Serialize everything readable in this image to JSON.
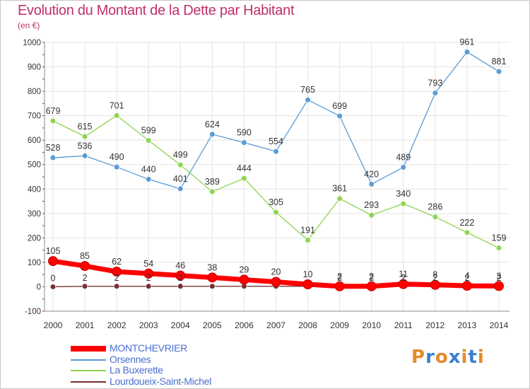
{
  "page": {
    "title": "Evolution du Montant de la Dette par Habitant",
    "subtitle": "(en €)"
  },
  "chart_data": {
    "type": "line",
    "title": "Evolution du Montant de la Dette par Habitant",
    "subtitle": "(en €)",
    "x": [
      2000,
      2001,
      2002,
      2003,
      2004,
      2005,
      2006,
      2007,
      2008,
      2009,
      2010,
      2011,
      2012,
      2013,
      2014
    ],
    "ylim": [
      -100,
      1000
    ],
    "yticks": [
      -100,
      0,
      100,
      200,
      300,
      400,
      500,
      600,
      700,
      800,
      900,
      1000
    ],
    "grid": true,
    "legend_position": "bottom-left",
    "series": [
      {
        "name": "MONTCHEVRIER",
        "color": "#ff0000",
        "values": [
          105,
          85,
          62,
          54,
          46,
          38,
          29,
          20,
          10,
          2,
          2,
          11,
          8,
          4,
          3
        ],
        "labels": [
          "105",
          "85",
          "62",
          "54",
          "46",
          "38",
          "29",
          "20",
          "10",
          "2",
          "2",
          "11",
          "8",
          "4",
          "3"
        ]
      },
      {
        "name": "Orsennes",
        "color": "#5b9bd5",
        "values": [
          528,
          536,
          490,
          440,
          401,
          624,
          590,
          554,
          765,
          699,
          420,
          489,
          793,
          961,
          881
        ],
        "labels": [
          "528",
          "536",
          "490",
          "440",
          "401",
          "624",
          "590",
          "554",
          "765",
          "699",
          "420",
          "489",
          "793",
          "961",
          "881"
        ]
      },
      {
        "name": "La Buxerette",
        "color": "#8fd450",
        "values": [
          679,
          615,
          701,
          599,
          499,
          389,
          444,
          305,
          191,
          361,
          293,
          340,
          286,
          222,
          159
        ],
        "labels": [
          "679",
          "615",
          "701",
          "599",
          "499",
          "389",
          "444",
          "305",
          "191",
          "361",
          "293",
          "340",
          "286",
          "222",
          "159"
        ]
      },
      {
        "name": "Lourdoueix-Saint-Michel",
        "color": "#7a2e2e",
        "values": [
          0,
          2,
          2,
          2,
          2,
          2,
          2,
          2,
          2,
          2,
          2,
          2,
          2,
          2,
          2
        ],
        "labels": [
          "0",
          "2",
          "2",
          "2",
          "2",
          "",
          "",
          "",
          "",
          "2",
          "2",
          "2",
          "2",
          "2",
          "2"
        ]
      }
    ]
  },
  "logo": {
    "text": "Proxiti",
    "colors": [
      "#e58a2c",
      "#3a7fd0",
      "#e58a2c",
      "#3a7fd0",
      "#e58a2c",
      "#3a7fd0",
      "#e58a2c"
    ]
  }
}
